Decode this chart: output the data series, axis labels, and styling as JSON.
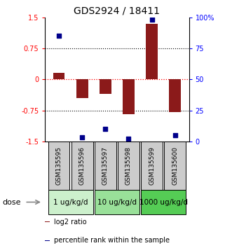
{
  "title": "GDS2924 / 18411",
  "samples": [
    "GSM135595",
    "GSM135596",
    "GSM135597",
    "GSM135598",
    "GSM135599",
    "GSM135600"
  ],
  "log2_ratio": [
    0.15,
    -0.45,
    -0.35,
    -0.85,
    1.35,
    -0.8
  ],
  "percentile_rank": [
    85,
    3,
    10,
    2,
    98,
    5
  ],
  "bar_color": "#8B1A1A",
  "dot_color": "#00008B",
  "ylim_left": [
    -1.5,
    1.5
  ],
  "ylim_right": [
    0,
    100
  ],
  "yticks_left": [
    -1.5,
    -0.75,
    0,
    0.75,
    1.5
  ],
  "ytick_labels_left": [
    "-1.5",
    "-0.75",
    "0",
    "0.75",
    "1.5"
  ],
  "yticks_right": [
    0,
    25,
    50,
    75,
    100
  ],
  "ytick_labels_right": [
    "0",
    "25",
    "50",
    "75",
    "100%"
  ],
  "hlines_dotted": [
    0.75,
    -0.75
  ],
  "hline_red_dashed": 0,
  "dose_groups": [
    {
      "label": "1 ug/kg/d",
      "indices": [
        0,
        1
      ],
      "color": "#ccf0cc"
    },
    {
      "label": "10 ug/kg/d",
      "indices": [
        2,
        3
      ],
      "color": "#99e099"
    },
    {
      "label": "1000 ug/kg/d",
      "indices": [
        4,
        5
      ],
      "color": "#55cc55"
    }
  ],
  "dose_label": "dose",
  "legend_bar_label": "log2 ratio",
  "legend_dot_label": "percentile rank within the sample",
  "bar_width": 0.5,
  "title_fontsize": 10,
  "tick_fontsize": 7,
  "sample_label_fontsize": 6.5,
  "dose_fontsize": 7.5,
  "legend_fontsize": 7
}
